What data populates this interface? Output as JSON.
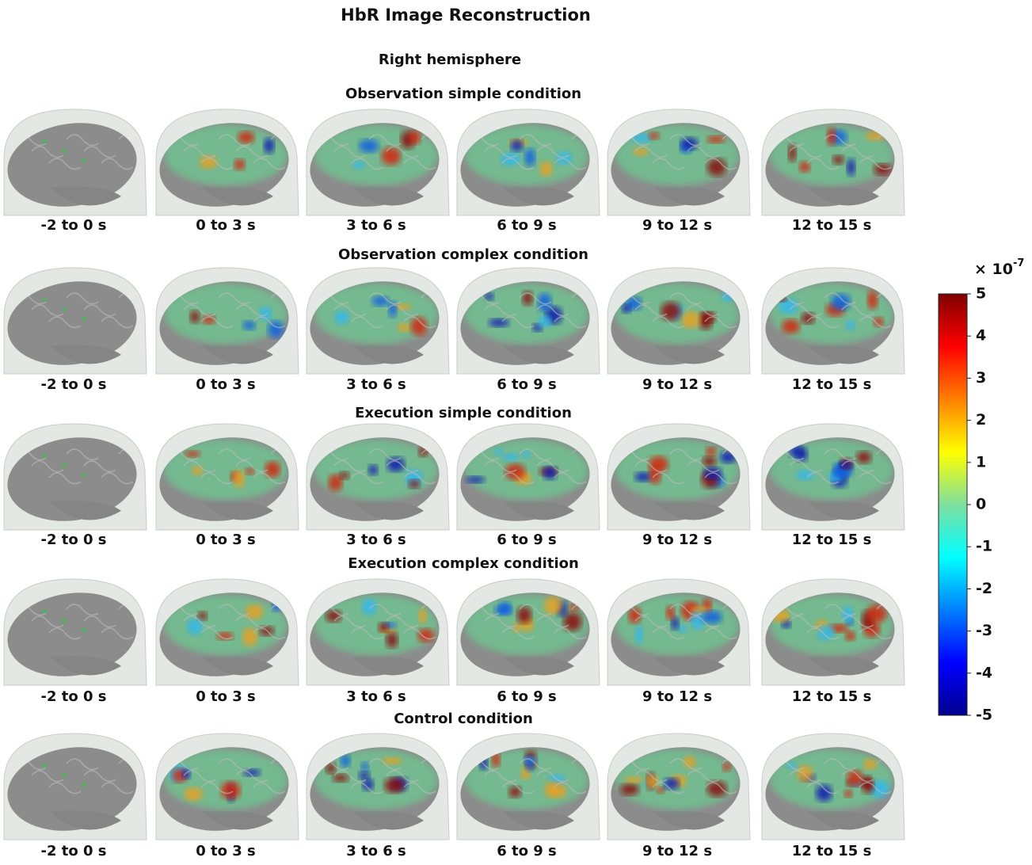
{
  "title": "HbR Image Reconstruction",
  "subtitle": "Right hemisphere",
  "rows": [
    {
      "title": "Observation simple condition",
      "labels": [
        "-2 to 0 s",
        "0 to 3 s",
        "3 to 6 s",
        "6 to 9 s",
        "9 to 12 s",
        "12 to 15 s"
      ]
    },
    {
      "title": "Observation complex condition",
      "labels": [
        "-2 to 0 s",
        "0 to 3 s",
        "3 to 6 s",
        "6 to 9 s",
        "9 to 12 s",
        "12 to 15 s"
      ]
    },
    {
      "title": "Execution simple condition",
      "labels": [
        "-2 to 0 s",
        "0 to 3 s",
        "3 to 6 s",
        "6 to 9 s",
        "9 to 12 s",
        "12 to 15 s"
      ]
    },
    {
      "title": "Execution complex condition",
      "labels": [
        "-2 to 0 s",
        "0 to 3 s",
        "3 to 6 s",
        "6 to 9 s",
        "9 to 12 s",
        "12 to 15 s"
      ]
    },
    {
      "title": "Control condition",
      "labels": [
        "-2 to 0 s",
        "0 to 3 s",
        "3 to 6 s",
        "6 to 9 s",
        "9 to 12 s",
        "12 to 15 s"
      ]
    }
  ],
  "colorbar": {
    "lim": [
      -5,
      5
    ],
    "ticks": [
      -5,
      -4,
      -3,
      -2,
      -1,
      0,
      1,
      2,
      3,
      4,
      5
    ],
    "multiplier": {
      "base": "× 10",
      "exponent": "-7"
    }
  }
}
